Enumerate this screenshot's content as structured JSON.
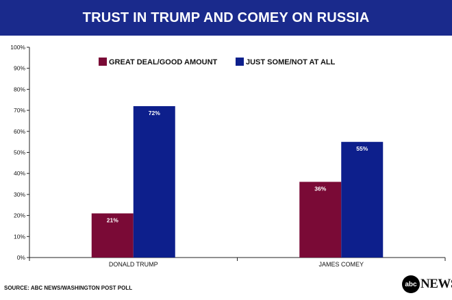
{
  "header": {
    "title": "TRUST IN TRUMP AND COMEY ON RUSSIA"
  },
  "footer": {
    "source": "SOURCE: ABC NEWS/WASHINGTON POST POLL"
  },
  "logo": {
    "mark": "abc",
    "text": "NEWS"
  },
  "colors": {
    "header_bg": "#1a2a8c",
    "series_1": "#7a0a36",
    "series_2": "#0d1f8c"
  },
  "chart_data": {
    "type": "bar",
    "title": "TRUST IN TRUMP AND COMEY ON RUSSIA",
    "categories": [
      "DONALD TRUMP",
      "JAMES COMEY"
    ],
    "series": [
      {
        "name": "GREAT DEAL/GOOD AMOUNT",
        "values": [
          21,
          36
        ],
        "labels": [
          "21%",
          "36%"
        ],
        "color": "#7a0a36"
      },
      {
        "name": "JUST SOME/NOT AT ALL",
        "values": [
          72,
          55
        ],
        "labels": [
          "72%",
          "55%"
        ],
        "color": "#0d1f8c"
      }
    ],
    "ylim": [
      0,
      100
    ],
    "yticks": [
      0,
      10,
      20,
      30,
      40,
      50,
      60,
      70,
      80,
      90,
      100
    ],
    "ytick_labels": [
      "0%",
      "10%",
      "20%",
      "30%",
      "40%",
      "50%",
      "60%",
      "70%",
      "80%",
      "90%",
      "100%"
    ],
    "xlabel": "",
    "ylabel": "",
    "grid": false,
    "legend_position": "top-center"
  }
}
